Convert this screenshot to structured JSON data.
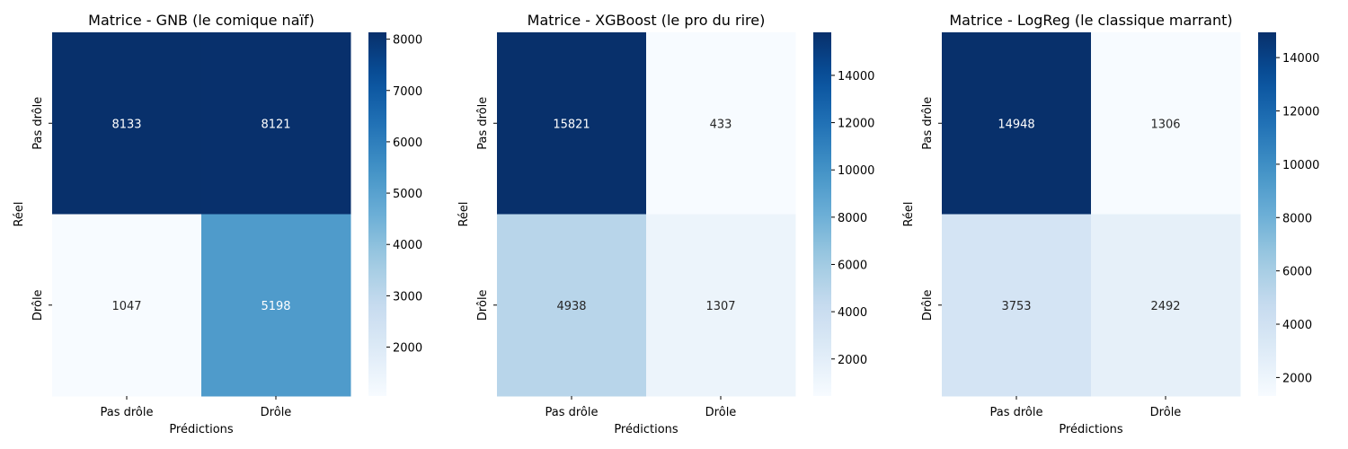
{
  "chart_data": [
    {
      "type": "heatmap",
      "title": "Matrice - GNB (le comique naïf)",
      "xlabel": "Prédictions",
      "ylabel": "Réel",
      "x_categories": [
        "Pas drôle",
        "Drôle"
      ],
      "y_categories": [
        "Pas drôle",
        "Drôle"
      ],
      "values": [
        [
          8133,
          8121
        ],
        [
          1047,
          5198
        ]
      ],
      "colormap": "Blues",
      "vmin": 1047,
      "vmax": 8133,
      "colorbar_ticks": [
        2000,
        3000,
        4000,
        5000,
        6000,
        7000,
        8000
      ]
    },
    {
      "type": "heatmap",
      "title": "Matrice - XGBoost (le pro du rire)",
      "xlabel": "Prédictions",
      "ylabel": "Réel",
      "x_categories": [
        "Pas drôle",
        "Drôle"
      ],
      "y_categories": [
        "Pas drôle",
        "Drôle"
      ],
      "values": [
        [
          15821,
          433
        ],
        [
          4938,
          1307
        ]
      ],
      "colormap": "Blues",
      "vmin": 433,
      "vmax": 15821,
      "colorbar_ticks": [
        2000,
        4000,
        6000,
        8000,
        10000,
        12000,
        14000
      ]
    },
    {
      "type": "heatmap",
      "title": "Matrice - LogReg (le classique marrant)",
      "xlabel": "Prédictions",
      "ylabel": "Réel",
      "x_categories": [
        "Pas drôle",
        "Drôle"
      ],
      "y_categories": [
        "Pas drôle",
        "Drôle"
      ],
      "values": [
        [
          14948,
          1306
        ],
        [
          3753,
          2492
        ]
      ],
      "colormap": "Blues",
      "vmin": 1306,
      "vmax": 14948,
      "colorbar_ticks": [
        2000,
        4000,
        6000,
        8000,
        10000,
        12000,
        14000
      ]
    }
  ]
}
